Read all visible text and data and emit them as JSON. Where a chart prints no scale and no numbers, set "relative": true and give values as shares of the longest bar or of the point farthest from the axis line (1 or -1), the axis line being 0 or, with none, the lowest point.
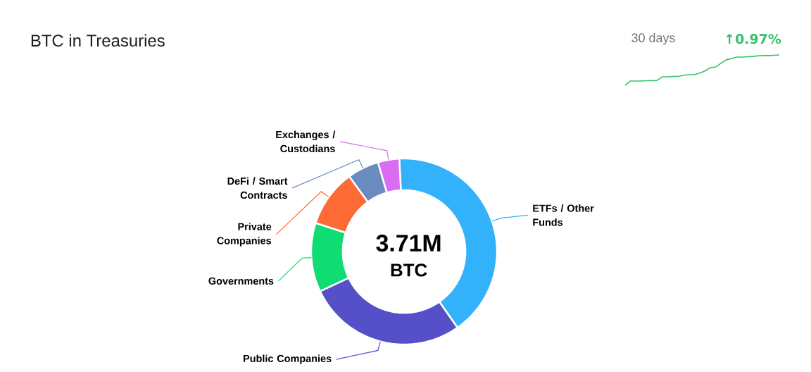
{
  "chart_data": [
    {
      "type": "donut",
      "title": "BTC in Treasuries",
      "categories": [
        "ETFs / Other Funds",
        "Public Companies",
        "Governments",
        "Private Companies",
        "DeFi / Smart Contracts",
        "Exchanges / Custodians"
      ],
      "values": [
        41.1,
        27.7,
        12,
        10,
        5.5,
        3.7
      ],
      "colors": [
        "#33b1fb",
        "#5550c8",
        "#0fdc72",
        "#fd6a35",
        "#6a8bbd",
        "#d86cf3"
      ],
      "annotations": [
        "3.71M",
        "BTC"
      ]
    },
    {
      "type": "line",
      "title": "30 days",
      "annotations": [
        "↑0.97%"
      ],
      "relative": true,
      "color": "#34c268",
      "categories": [
        null,
        null,
        null,
        null,
        null,
        null,
        null,
        null,
        null,
        null,
        null,
        null,
        null,
        null,
        null,
        null,
        null,
        null,
        null,
        null,
        null,
        null,
        null,
        null,
        null,
        null,
        null,
        null,
        null,
        null
      ],
      "values": [
        0,
        0.14,
        0.14,
        0.14,
        0.15,
        0.15,
        0.16,
        0.28,
        0.28,
        0.29,
        0.29,
        0.33,
        0.35,
        0.35,
        0.4,
        0.47,
        0.58,
        0.6,
        0.72,
        0.84,
        0.88,
        0.93,
        0.93,
        0.94,
        0.95,
        0.97,
        0.98,
        0.98,
        0.99,
        1
      ]
    }
  ]
}
